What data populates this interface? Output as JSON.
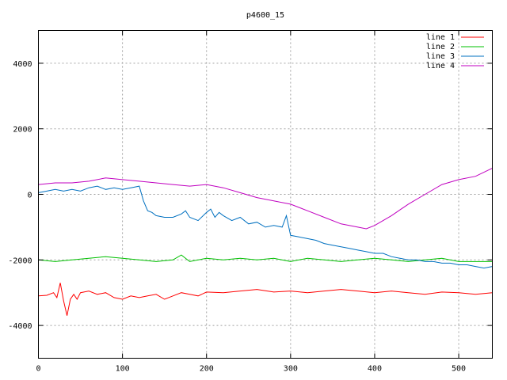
{
  "chart_data": {
    "type": "line",
    "title": "p4600_15",
    "xlabel": "",
    "ylabel": "",
    "xlim": [
      0,
      540
    ],
    "ylim": [
      -5000,
      5000
    ],
    "xticks": [
      0,
      100,
      200,
      300,
      400,
      500
    ],
    "yticks": [
      -4000,
      -2000,
      0,
      2000,
      4000
    ],
    "grid": true,
    "legend_position": "top-right",
    "series": [
      {
        "name": "line 1",
        "color": "#ff0000",
        "x": [
          0,
          10,
          18,
          22,
          26,
          30,
          34,
          38,
          42,
          46,
          50,
          60,
          70,
          80,
          90,
          100,
          110,
          120,
          130,
          140,
          150,
          160,
          170,
          180,
          190,
          200,
          220,
          240,
          260,
          280,
          300,
          320,
          340,
          360,
          380,
          400,
          420,
          440,
          460,
          480,
          500,
          520,
          540
        ],
        "y": [
          -3100,
          -3080,
          -3000,
          -3150,
          -2700,
          -3250,
          -3700,
          -3200,
          -3050,
          -3200,
          -3000,
          -2950,
          -3050,
          -3000,
          -3150,
          -3200,
          -3100,
          -3150,
          -3100,
          -3050,
          -3200,
          -3100,
          -3000,
          -3050,
          -3100,
          -2980,
          -3000,
          -2950,
          -2900,
          -2980,
          -2950,
          -3000,
          -2950,
          -2900,
          -2950,
          -3000,
          -2950,
          -3000,
          -3050,
          -2980,
          -3000,
          -3050,
          -3000
        ]
      },
      {
        "name": "line 2",
        "color": "#00c000",
        "x": [
          0,
          20,
          40,
          60,
          80,
          100,
          120,
          140,
          160,
          170,
          180,
          200,
          220,
          240,
          260,
          280,
          300,
          320,
          340,
          360,
          380,
          400,
          420,
          440,
          460,
          480,
          500,
          520,
          540
        ],
        "y": [
          -2000,
          -2050,
          -2000,
          -1950,
          -1900,
          -1950,
          -2000,
          -2050,
          -2000,
          -1850,
          -2050,
          -1950,
          -2000,
          -1950,
          -2000,
          -1950,
          -2050,
          -1950,
          -2000,
          -2050,
          -2000,
          -1950,
          -2000,
          -2050,
          -2000,
          -1950,
          -2050,
          -2050,
          -2050
        ]
      },
      {
        "name": "line 3",
        "color": "#0070c0",
        "x": [
          0,
          10,
          20,
          30,
          40,
          50,
          60,
          70,
          80,
          90,
          100,
          110,
          120,
          125,
          130,
          135,
          140,
          150,
          160,
          170,
          175,
          180,
          190,
          200,
          205,
          210,
          215,
          220,
          230,
          240,
          250,
          260,
          270,
          280,
          290,
          295,
          300,
          310,
          320,
          330,
          340,
          350,
          360,
          370,
          380,
          390,
          400,
          410,
          420,
          430,
          440,
          450,
          460,
          470,
          480,
          490,
          500,
          510,
          520,
          530,
          540
        ],
        "y": [
          50,
          100,
          150,
          100,
          150,
          100,
          200,
          250,
          150,
          200,
          150,
          200,
          250,
          -200,
          -500,
          -550,
          -650,
          -700,
          -700,
          -600,
          -500,
          -700,
          -800,
          -550,
          -450,
          -700,
          -550,
          -650,
          -800,
          -700,
          -900,
          -850,
          -1000,
          -950,
          -1000,
          -650,
          -1250,
          -1300,
          -1350,
          -1400,
          -1500,
          -1550,
          -1600,
          -1650,
          -1700,
          -1750,
          -1800,
          -1800,
          -1900,
          -1950,
          -2000,
          -2000,
          -2050,
          -2050,
          -2100,
          -2100,
          -2150,
          -2150,
          -2200,
          -2250,
          -2200
        ]
      },
      {
        "name": "line 4",
        "color": "#c000c0",
        "x": [
          0,
          20,
          40,
          60,
          80,
          100,
          120,
          140,
          160,
          180,
          200,
          220,
          240,
          260,
          280,
          300,
          320,
          340,
          360,
          380,
          390,
          400,
          420,
          440,
          460,
          480,
          500,
          520,
          540
        ],
        "y": [
          300,
          350,
          350,
          400,
          500,
          450,
          400,
          350,
          300,
          250,
          300,
          200,
          50,
          -100,
          -200,
          -300,
          -500,
          -700,
          -900,
          -1000,
          -1050,
          -950,
          -650,
          -300,
          0,
          300,
          450,
          550,
          800
        ]
      }
    ]
  }
}
